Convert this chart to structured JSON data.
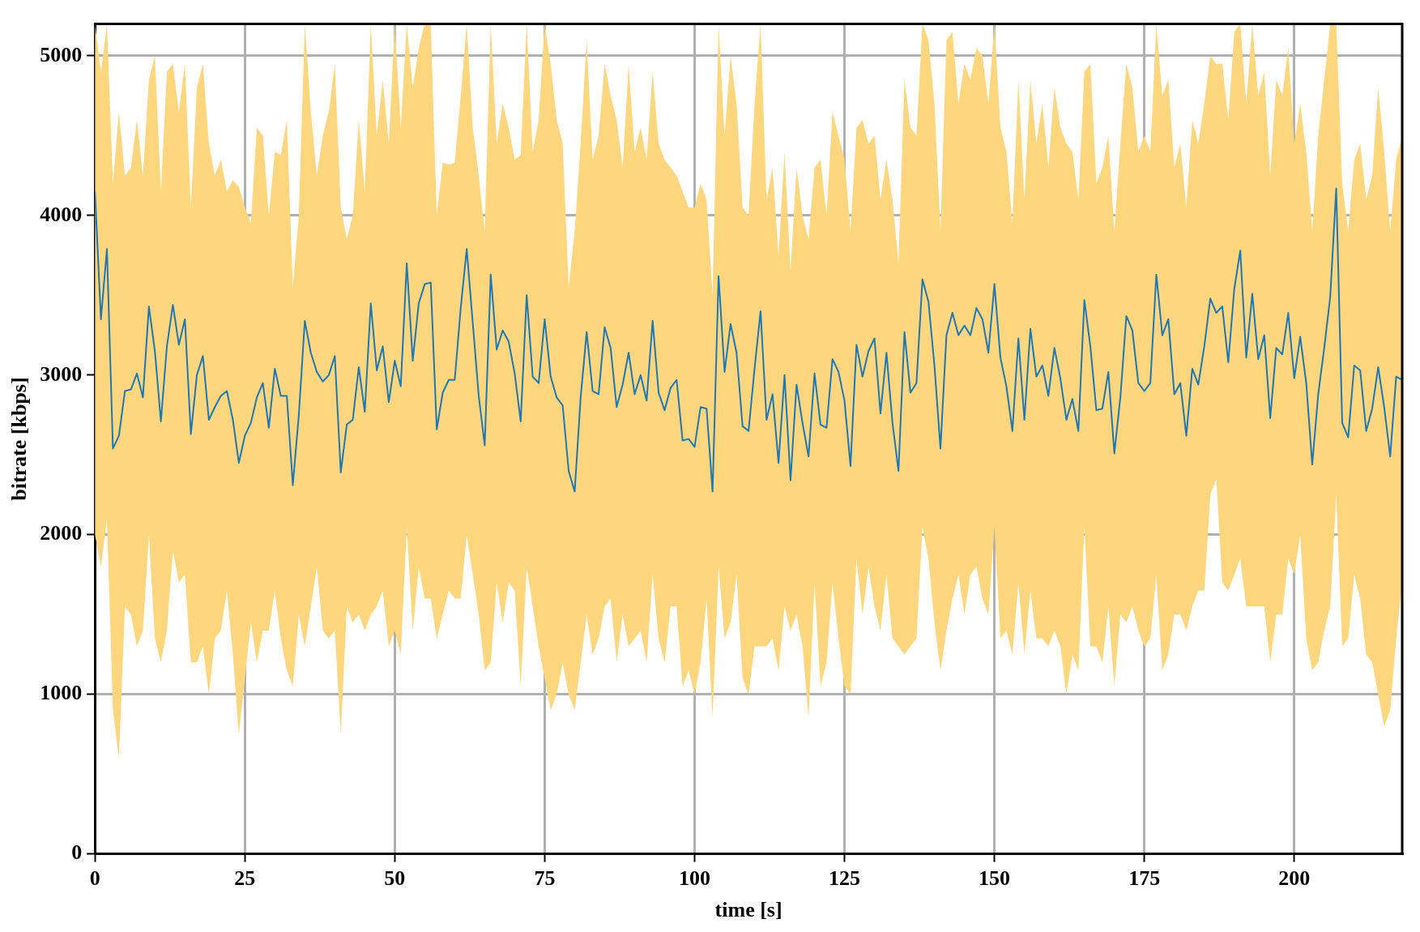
{
  "chart_data": {
    "type": "line",
    "xlabel": "time [s]",
    "ylabel": "bitrate [kbps]",
    "xlim": [
      0,
      218
    ],
    "ylim": [
      0,
      5200
    ],
    "xticks": [
      0,
      25,
      50,
      75,
      100,
      125,
      150,
      175,
      200
    ],
    "yticks": [
      0,
      1000,
      2000,
      3000,
      4000,
      5000
    ],
    "grid": true,
    "legend": false,
    "marker": "none",
    "line_style": "solid",
    "x": [
      0,
      1,
      2,
      3,
      4,
      5,
      6,
      7,
      8,
      9,
      10,
      11,
      12,
      13,
      14,
      15,
      16,
      17,
      18,
      19,
      20,
      21,
      22,
      23,
      24,
      25,
      26,
      27,
      28,
      29,
      30,
      31,
      32,
      33,
      34,
      35,
      36,
      37,
      38,
      39,
      40,
      41,
      42,
      43,
      44,
      45,
      46,
      47,
      48,
      49,
      50,
      51,
      52,
      53,
      54,
      55,
      56,
      57,
      58,
      59,
      60,
      61,
      62,
      63,
      64,
      65,
      66,
      67,
      68,
      69,
      70,
      71,
      72,
      73,
      74,
      75,
      76,
      77,
      78,
      79,
      80,
      81,
      82,
      83,
      84,
      85,
      86,
      87,
      88,
      89,
      90,
      91,
      92,
      93,
      94,
      95,
      96,
      97,
      98,
      99,
      100,
      101,
      102,
      103,
      104,
      105,
      106,
      107,
      108,
      109,
      110,
      111,
      112,
      113,
      114,
      115,
      116,
      117,
      118,
      119,
      120,
      121,
      122,
      123,
      124,
      125,
      126,
      127,
      128,
      129,
      130,
      131,
      132,
      133,
      134,
      135,
      136,
      137,
      138,
      139,
      140,
      141,
      142,
      143,
      144,
      145,
      146,
      147,
      148,
      149,
      150,
      151,
      152,
      153,
      154,
      155,
      156,
      157,
      158,
      159,
      160,
      161,
      162,
      163,
      164,
      165,
      166,
      167,
      168,
      169,
      170,
      171,
      172,
      173,
      174,
      175,
      176,
      177,
      178,
      179,
      180,
      181,
      182,
      183,
      184,
      185,
      186,
      187,
      188,
      189,
      190,
      191,
      192,
      193,
      194,
      195,
      196,
      197,
      198,
      199,
      200,
      201,
      202,
      203,
      204,
      205,
      206,
      207,
      208,
      209,
      210,
      211,
      212,
      213,
      214,
      215,
      216,
      217,
      218
    ],
    "series": [
      {
        "color": "#1f77b4",
        "values": [
          4150,
          3350,
          3790,
          2540,
          2620,
          2900,
          2910,
          3010,
          2860,
          3430,
          3150,
          2710,
          3180,
          3440,
          3190,
          3350,
          2630,
          3000,
          3120,
          2720,
          2800,
          2870,
          2900,
          2720,
          2450,
          2620,
          2700,
          2860,
          2950,
          2670,
          3040,
          2870,
          2870,
          2310,
          2750,
          3340,
          3140,
          3020,
          2960,
          3000,
          3120,
          2390,
          2690,
          2720,
          3050,
          2770,
          3450,
          3030,
          3180,
          2830,
          3090,
          2930,
          3700,
          3090,
          3450,
          3570,
          3580,
          2660,
          2890,
          2970,
          2970,
          3420,
          3790,
          3330,
          2870,
          2560,
          3630,
          3160,
          3280,
          3210,
          3010,
          2710,
          3500,
          2990,
          2950,
          3350,
          2990,
          2860,
          2810,
          2400,
          2270,
          2860,
          3270,
          2900,
          2880,
          3300,
          3170,
          2800,
          2940,
          3140,
          2880,
          3000,
          2840,
          3340,
          2890,
          2780,
          2920,
          2970,
          2590,
          2600,
          2550,
          2800,
          2790,
          2270,
          3620,
          3020,
          3320,
          3140,
          2680,
          2650,
          3040,
          3400,
          2720,
          2880,
          2450,
          3000,
          2340,
          2940,
          2700,
          2490,
          3010,
          2690,
          2670,
          3100,
          3020,
          2840,
          2430,
          3190,
          2990,
          3150,
          3230,
          2760,
          3140,
          2700,
          2400,
          3270,
          2890,
          2950,
          3600,
          3460,
          3060,
          2540,
          3250,
          3390,
          3250,
          3310,
          3250,
          3420,
          3350,
          3140,
          3570,
          3110,
          2930,
          2650,
          3230,
          2720,
          3290,
          2990,
          3060,
          2870,
          3170,
          2980,
          2720,
          2850,
          2650,
          3470,
          3180,
          2780,
          2790,
          3020,
          2510,
          2860,
          3370,
          3280,
          2950,
          2900,
          2950,
          3630,
          3250,
          3350,
          2880,
          2950,
          2620,
          3040,
          2940,
          3180,
          3480,
          3390,
          3430,
          3080,
          3540,
          3780,
          3110,
          3510,
          3100,
          3250,
          2730,
          3170,
          3130,
          3390,
          2980,
          3240,
          2950,
          2440,
          2880,
          3170,
          3490,
          4170,
          2700,
          2610,
          3060,
          3030,
          2650,
          2790,
          3050,
          2800,
          2490,
          2990,
          2970
        ],
        "upper": [
          5200,
          4900,
          5200,
          4200,
          4650,
          4250,
          4300,
          4600,
          4250,
          4850,
          5000,
          4150,
          4900,
          4950,
          4650,
          4950,
          4050,
          4800,
          4950,
          4450,
          4250,
          4350,
          4150,
          4220,
          4180,
          4050,
          3950,
          4550,
          4500,
          4000,
          4400,
          4380,
          4600,
          3550,
          4000,
          5200,
          4650,
          4250,
          4500,
          4650,
          4950,
          4050,
          3850,
          4000,
          4600,
          4150,
          5200,
          4500,
          4850,
          4450,
          5200,
          4550,
          5200,
          4800,
          5050,
          5200,
          5200,
          4000,
          4330,
          4320,
          4330,
          4750,
          5200,
          4550,
          4250,
          3900,
          5200,
          4450,
          4700,
          4550,
          4350,
          4380,
          5200,
          4400,
          4600,
          5200,
          4950,
          4600,
          4450,
          3550,
          3900,
          4450,
          5100,
          4350,
          4500,
          4950,
          4750,
          4600,
          4300,
          4950,
          4400,
          4550,
          4350,
          4900,
          4450,
          4350,
          4300,
          4250,
          4150,
          4050,
          4050,
          4200,
          4100,
          3500,
          5200,
          4500,
          5000,
          4700,
          4050,
          4000,
          4700,
          5200,
          4100,
          4300,
          3750,
          4400,
          3650,
          4300,
          4000,
          3850,
          4300,
          4350,
          4000,
          4650,
          4500,
          4350,
          3900,
          4550,
          4600,
          4450,
          4500,
          4100,
          4350,
          4100,
          3700,
          4850,
          4550,
          4500,
          5200,
          5100,
          4700,
          3900,
          5100,
          5150,
          4700,
          4950,
          4850,
          5050,
          5000,
          4700,
          5200,
          4550,
          4400,
          3950,
          4850,
          4100,
          4850,
          4450,
          4700,
          4300,
          4800,
          4550,
          4450,
          4400,
          4100,
          4900,
          4950,
          4200,
          4300,
          4500,
          3900,
          4450,
          4950,
          4800,
          4400,
          4500,
          4400,
          5200,
          4750,
          4850,
          4300,
          4450,
          4050,
          4600,
          4450,
          4700,
          5000,
          4950,
          4950,
          4600,
          5150,
          5200,
          4700,
          5200,
          4750,
          4900,
          4250,
          4850,
          4750,
          5050,
          4450,
          4700,
          4400,
          3900,
          4500,
          4850,
          5200,
          5200,
          4200,
          3900,
          4350,
          4450,
          4100,
          4250,
          4800,
          4400,
          3900,
          4350,
          4500
        ],
        "lower": [
          2000,
          1800,
          2100,
          900,
          600,
          1550,
          1500,
          1300,
          1400,
          2000,
          1350,
          1200,
          1400,
          1900,
          1700,
          1750,
          1200,
          1200,
          1300,
          1000,
          1350,
          1400,
          1650,
          1250,
          750,
          1100,
          1450,
          1200,
          1400,
          1400,
          1650,
          1350,
          1150,
          1050,
          1500,
          1300,
          1550,
          1800,
          1400,
          1350,
          1400,
          750,
          1550,
          1450,
          1500,
          1400,
          1500,
          1550,
          1650,
          1300,
          1400,
          1250,
          2050,
          1400,
          1800,
          1600,
          1600,
          1350,
          1500,
          1650,
          1600,
          1600,
          2000,
          1750,
          1500,
          1150,
          1200,
          1700,
          1450,
          1700,
          1650,
          1050,
          1800,
          1550,
          1300,
          1100,
          900,
          1000,
          1200,
          1000,
          900,
          1200,
          1500,
          1250,
          1350,
          1550,
          1600,
          1200,
          1500,
          1300,
          1350,
          1400,
          1200,
          1750,
          1350,
          1200,
          1550,
          1550,
          1050,
          1150,
          1000,
          1200,
          1600,
          850,
          1800,
          1350,
          1450,
          1750,
          1100,
          1000,
          1300,
          1300,
          1300,
          1350,
          1150,
          1550,
          1400,
          1500,
          1300,
          850,
          1700,
          1050,
          1200,
          1700,
          1350,
          1050,
          1000,
          1850,
          1500,
          1800,
          1550,
          1400,
          1750,
          1350,
          1300,
          1250,
          1300,
          1350,
          2050,
          1850,
          1450,
          1150,
          1400,
          1600,
          1750,
          1500,
          1750,
          1800,
          1600,
          1500,
          2050,
          1350,
          1400,
          1250,
          1700,
          1250,
          1650,
          1350,
          1350,
          1300,
          1400,
          1300,
          1000,
          1250,
          1150,
          2050,
          1300,
          1300,
          1200,
          1550,
          1050,
          1500,
          1450,
          1550,
          1400,
          1300,
          1350,
          1750,
          1150,
          1250,
          1500,
          1500,
          1400,
          1550,
          1650,
          1650,
          2250,
          2350,
          1700,
          1650,
          1750,
          1850,
          1550,
          1550,
          1550,
          1550,
          1200,
          1500,
          1500,
          1850,
          1750,
          2000,
          1350,
          1150,
          1200,
          1400,
          1550,
          2250,
          1300,
          1350,
          1750,
          1600,
          1250,
          1200,
          1000,
          800,
          900,
          1350,
          1700
        ]
      }
    ]
  }
}
